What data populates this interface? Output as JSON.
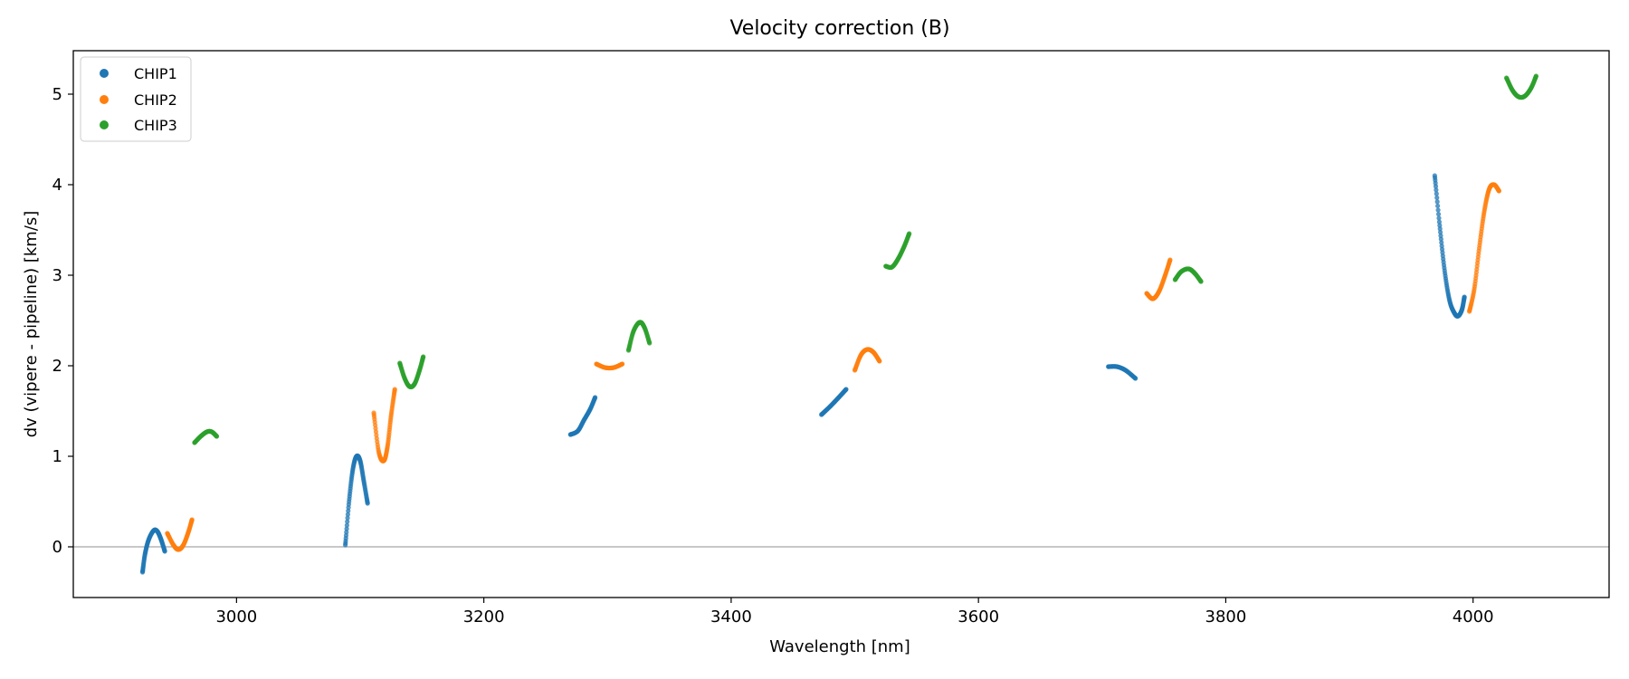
{
  "chart_data": {
    "type": "scatter",
    "title": "Velocity correction (B)",
    "xlabel": "Wavelength [nm]",
    "ylabel": "dv (vipere - pipeline) [km/s]",
    "xlim": [
      2868,
      4110
    ],
    "ylim": [
      -0.56,
      5.48
    ],
    "xticks": [
      3000,
      3200,
      3400,
      3600,
      3800,
      4000
    ],
    "yticks": [
      0,
      1,
      2,
      3,
      4,
      5
    ],
    "zero_line": 0,
    "legend_position": "top-left",
    "colors": {
      "CHIP1": "#1f77b4",
      "CHIP2": "#ff7f0e",
      "CHIP3": "#2ca02c",
      "zero_line": "#a6a6a6"
    },
    "series": [
      {
        "name": "CHIP1",
        "segments": [
          {
            "x": [
              2924,
              2926,
              2929,
              2933,
              2936,
              2939,
              2942
            ],
            "y": [
              -0.28,
              -0.08,
              0.08,
              0.18,
              0.17,
              0.08,
              -0.05
            ]
          },
          {
            "x": [
              3088,
              3091,
              3094,
              3097,
              3100,
              3103,
              3106
            ],
            "y": [
              0.02,
              0.5,
              0.85,
              1.0,
              0.95,
              0.72,
              0.48
            ]
          },
          {
            "x": [
              3270,
              3276,
              3281,
              3286,
              3290
            ],
            "y": [
              1.24,
              1.28,
              1.4,
              1.52,
              1.65
            ]
          },
          {
            "x": [
              3473,
              3480,
              3487,
              3493
            ],
            "y": [
              1.46,
              1.55,
              1.65,
              1.74
            ]
          },
          {
            "x": [
              3705,
              3712,
              3719,
              3727
            ],
            "y": [
              1.99,
              1.99,
              1.95,
              1.86
            ]
          },
          {
            "x": [
              3969,
              3973,
              3977,
              3981,
              3985,
              3988,
              3991,
              3993
            ],
            "y": [
              4.1,
              3.55,
              3.05,
              2.72,
              2.58,
              2.55,
              2.62,
              2.76
            ]
          }
        ]
      },
      {
        "name": "CHIP2",
        "segments": [
          {
            "x": [
              2944,
              2949,
              2953,
              2957,
              2961,
              2964
            ],
            "y": [
              0.15,
              0.02,
              -0.03,
              0.02,
              0.16,
              0.3
            ]
          },
          {
            "x": [
              3111,
              3115,
              3119,
              3122,
              3125,
              3128
            ],
            "y": [
              1.48,
              1.05,
              0.95,
              1.1,
              1.45,
              1.74
            ]
          },
          {
            "x": [
              3291,
              3298,
              3305,
              3312
            ],
            "y": [
              2.02,
              1.98,
              1.98,
              2.02
            ]
          },
          {
            "x": [
              3500,
              3505,
              3510,
              3515,
              3520
            ],
            "y": [
              1.95,
              2.12,
              2.18,
              2.15,
              2.05
            ]
          },
          {
            "x": [
              3736,
              3741,
              3746,
              3751,
              3755
            ],
            "y": [
              2.8,
              2.74,
              2.82,
              3.0,
              3.17
            ]
          },
          {
            "x": [
              3997,
              4001,
              4005,
              4009,
              4013,
              4017,
              4021
            ],
            "y": [
              2.6,
              2.85,
              3.3,
              3.7,
              3.95,
              4.0,
              3.93
            ]
          }
        ]
      },
      {
        "name": "CHIP3",
        "segments": [
          {
            "x": [
              2966,
              2971,
              2976,
              2980,
              2984
            ],
            "y": [
              1.15,
              1.22,
              1.27,
              1.27,
              1.22
            ]
          },
          {
            "x": [
              3132,
              3136,
              3140,
              3144,
              3148,
              3151
            ],
            "y": [
              2.03,
              1.86,
              1.77,
              1.8,
              1.95,
              2.1
            ]
          },
          {
            "x": [
              3317,
              3321,
              3326,
              3330,
              3334
            ],
            "y": [
              2.17,
              2.38,
              2.48,
              2.42,
              2.25
            ]
          },
          {
            "x": [
              3525,
              3530,
              3535,
              3540,
              3544
            ],
            "y": [
              3.1,
              3.09,
              3.18,
              3.32,
              3.46
            ]
          },
          {
            "x": [
              3759,
              3764,
              3770,
              3775,
              3780
            ],
            "y": [
              2.95,
              3.04,
              3.07,
              3.02,
              2.93
            ]
          },
          {
            "x": [
              4027,
              4032,
              4037,
              4042,
              4047,
              4051
            ],
            "y": [
              5.18,
              5.04,
              4.97,
              4.98,
              5.07,
              5.2
            ]
          }
        ]
      }
    ]
  }
}
